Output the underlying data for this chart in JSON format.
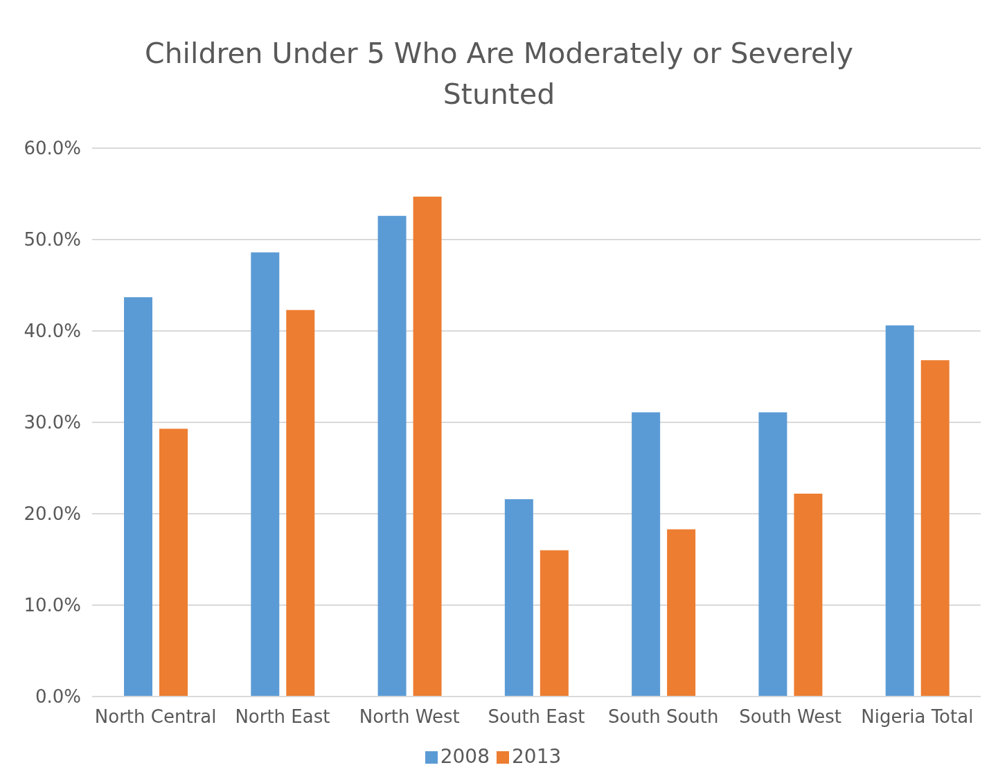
{
  "chart_data": {
    "type": "bar",
    "title": "Children Under 5 Who Are Moderately or Severely Stunted",
    "categories": [
      "North Central",
      "North East",
      "North West",
      "South East",
      "South South",
      "South West",
      "Nigeria Total"
    ],
    "series": [
      {
        "name": "2008",
        "color": "#5b9bd5",
        "values": [
          43.7,
          48.6,
          52.6,
          21.6,
          31.1,
          31.1,
          40.6
        ]
      },
      {
        "name": "2013",
        "color": "#ed7d31",
        "values": [
          29.3,
          42.3,
          54.7,
          16.0,
          18.3,
          22.2,
          36.8
        ]
      }
    ],
    "ylim": [
      0,
      60
    ],
    "yticks": [
      {
        "value": 0,
        "label": "0.0%"
      },
      {
        "value": 10,
        "label": "10.0%"
      },
      {
        "value": 20,
        "label": "20.0%"
      },
      {
        "value": 30,
        "label": "30.0%"
      },
      {
        "value": 40,
        "label": "40.0%"
      },
      {
        "value": 50,
        "label": "50.0%"
      },
      {
        "value": 60,
        "label": "60.0%"
      }
    ],
    "grid": "y",
    "legend": "bottom"
  }
}
